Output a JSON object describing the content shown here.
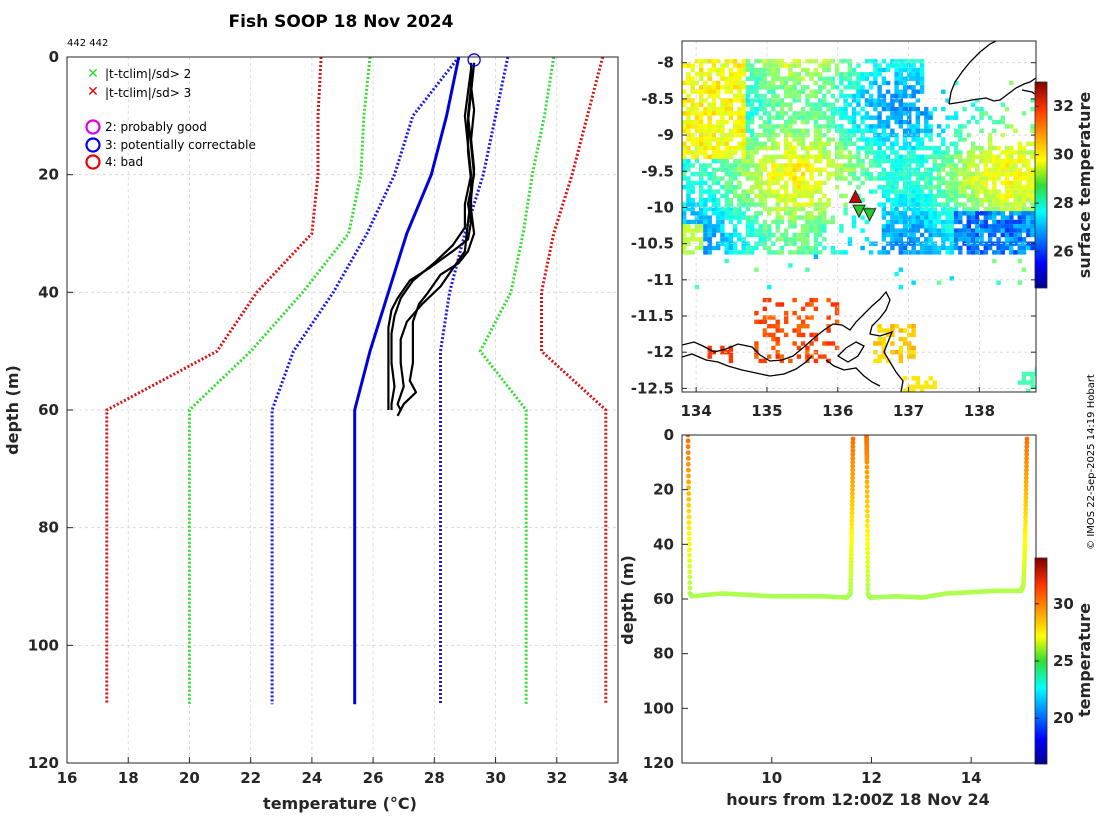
{
  "figure": {
    "title": "Fish SOOP 18 Nov 2024",
    "id_label": "442 442",
    "credit": "© IMOS 22-Sep-2025 14:19 Hobart"
  },
  "legend": {
    "flags": [
      {
        "marker": "x",
        "color": "#22dd22",
        "label": "|t-tclim|/sd> 2"
      },
      {
        "marker": "x",
        "color": "#e00000",
        "label": "|t-tclim|/sd> 3"
      }
    ],
    "qc": [
      {
        "marker": "o",
        "color": "#dd00dd",
        "label": "2: probably good"
      },
      {
        "marker": "o",
        "color": "#0000ee",
        "label": "3: potentially correctable"
      },
      {
        "marker": "o",
        "color": "#ee0000",
        "label": "4: bad"
      }
    ]
  },
  "colors": {
    "mean": "#0000dd",
    "sd1": "#1a1ae6",
    "sd2": "#33dd33",
    "sd3": "#dd1111",
    "profile": "#000000",
    "coast": "#000000"
  },
  "chart_data": [
    {
      "type": "line",
      "name": "profile",
      "xlabel": "temperature (°C)",
      "ylabel": "depth (m)",
      "xlim": [
        16,
        34
      ],
      "ylim": [
        120,
        0
      ],
      "xticks": [
        16,
        18,
        20,
        22,
        24,
        26,
        28,
        30,
        32,
        34
      ],
      "yticks": [
        0,
        20,
        40,
        60,
        80,
        100,
        120
      ],
      "grid": true,
      "climatology": {
        "depth": [
          0,
          10,
          20,
          30,
          40,
          50,
          60,
          110
        ],
        "mean": [
          28.8,
          28.4,
          27.9,
          27.1,
          26.5,
          25.9,
          25.4,
          25.4
        ],
        "sd1_lo": [
          28.8,
          27.3,
          26.7,
          25.8,
          24.7,
          23.4,
          22.7,
          22.7
        ],
        "sd1_hi": [
          30.4,
          30.0,
          29.6,
          29.0,
          28.5,
          28.2,
          28.2,
          28.2
        ],
        "sd2_lo": [
          25.9,
          25.7,
          25.6,
          25.2,
          23.7,
          22.0,
          20.0,
          20.0
        ],
        "sd2_hi": [
          31.9,
          31.6,
          31.2,
          30.9,
          30.5,
          29.5,
          31.0,
          31.0
        ],
        "sd3_lo": [
          24.3,
          24.2,
          24.2,
          24.0,
          22.2,
          20.9,
          17.3,
          17.3
        ],
        "sd3_hi": [
          33.5,
          33.0,
          32.5,
          31.9,
          31.5,
          31.5,
          33.6,
          33.6
        ]
      },
      "profiles": [
        {
          "depth": [
            1,
            5,
            10,
            15,
            20,
            25,
            28,
            31,
            33,
            36,
            38,
            41,
            43,
            46,
            50,
            55,
            58,
            60
          ],
          "temp": [
            29.2,
            29.2,
            29.1,
            29.2,
            29.3,
            29.1,
            29.2,
            29.1,
            28.6,
            27.8,
            27.2,
            26.8,
            26.6,
            26.5,
            26.5,
            26.5,
            26.5,
            26.5
          ]
        },
        {
          "depth": [
            2,
            6,
            10,
            15,
            20,
            25,
            29,
            32,
            35,
            38,
            41,
            44,
            47,
            52,
            56,
            59,
            60
          ],
          "temp": [
            29.2,
            29.1,
            29.0,
            29.1,
            29.2,
            29.0,
            29.0,
            28.6,
            28.0,
            27.3,
            26.9,
            26.7,
            26.6,
            26.6,
            26.7,
            26.6,
            26.6
          ]
        },
        {
          "depth": [
            1,
            5,
            9,
            14,
            19,
            24,
            28,
            33,
            36,
            39,
            42,
            45,
            48,
            52,
            56,
            59,
            60
          ],
          "temp": [
            29.3,
            29.2,
            29.3,
            29.2,
            29.3,
            29.2,
            29.1,
            29.0,
            28.6,
            28.2,
            27.6,
            27.1,
            26.9,
            26.9,
            27.0,
            26.8,
            26.9
          ]
        },
        {
          "depth": [
            1,
            6,
            11,
            16,
            21,
            26,
            30,
            33,
            35,
            37,
            40,
            42,
            45,
            48,
            52,
            55,
            57,
            59,
            61
          ],
          "temp": [
            29.3,
            29.2,
            29.1,
            29.1,
            29.2,
            29.2,
            29.3,
            29.1,
            28.8,
            28.2,
            27.8,
            27.5,
            27.3,
            27.3,
            27.3,
            27.2,
            27.4,
            27.0,
            26.8
          ]
        }
      ],
      "start_marker": {
        "temp": 29.3,
        "depth": 0.5,
        "qc": "3: potentially correctable"
      }
    },
    {
      "type": "heatmap",
      "name": "surface-temperature-map",
      "xlim": [
        133.8,
        138.8
      ],
      "ylim": [
        -12.55,
        -7.7
      ],
      "xticks": [
        134,
        135,
        136,
        137,
        138
      ],
      "yticks": [
        -8,
        -8.5,
        -9,
        -9.5,
        -10,
        -10.5,
        -11,
        -11.5,
        -12,
        -12.5
      ],
      "colorbar": {
        "label": "surface temperature",
        "min": 24.5,
        "max": 33,
        "ticks": [
          26,
          28,
          30,
          32
        ]
      },
      "markers": [
        {
          "lon": 136.25,
          "lat": -9.85,
          "type": "triangle-up",
          "color": "#cc0000"
        },
        {
          "lon": 136.3,
          "lat": -10.05,
          "type": "triangle-down",
          "color": "#22cc22"
        },
        {
          "lon": 136.45,
          "lat": -10.1,
          "type": "triangle-down",
          "color": "#22cc22"
        }
      ]
    },
    {
      "type": "scatter",
      "name": "depth-time",
      "xlabel": "hours from 12:00Z 18 Nov 24",
      "ylabel": "depth (m)",
      "xlim": [
        8.2,
        15.3
      ],
      "ylim": [
        120,
        0
      ],
      "xticks": [
        10,
        12,
        14
      ],
      "yticks": [
        0,
        20,
        40,
        60,
        80,
        100,
        120
      ],
      "colorbar": {
        "label": "temperature",
        "min": 16,
        "max": 34,
        "ticks": [
          20,
          25,
          30
        ]
      },
      "casts": [
        {
          "t": [
            8.32,
            8.34,
            8.36,
            8.4,
            9.0,
            9.5,
            10.0,
            10.5,
            11.0,
            11.5,
            11.58,
            11.6,
            11.62,
            11.63
          ],
          "d": [
            0,
            30,
            58,
            59,
            58,
            58.5,
            59,
            59,
            59,
            59.5,
            58,
            40,
            20,
            0
          ]
        },
        {
          "t": [
            11.9,
            11.91,
            11.92,
            11.93,
            11.95,
            12.0,
            12.5,
            13.0,
            13.5,
            14.0,
            14.5,
            15.0,
            15.05,
            15.08,
            15.1,
            15.12
          ],
          "d": [
            0,
            10,
            35,
            58,
            59,
            59.5,
            59,
            59.5,
            58,
            57.5,
            57,
            57,
            55,
            40,
            20,
            0
          ]
        }
      ]
    }
  ]
}
